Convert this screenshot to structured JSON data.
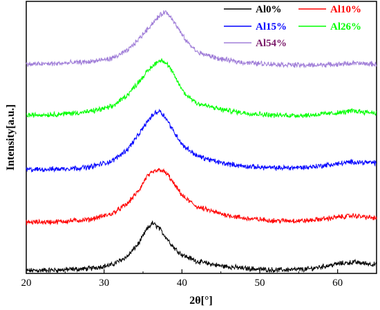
{
  "chart_data": {
    "type": "line",
    "title": "",
    "xlabel": "2θ[°]",
    "ylabel": "Intensity[a.u.]",
    "xlim": [
      20,
      65
    ],
    "x_ticks": [
      20,
      30,
      40,
      50,
      60
    ],
    "grid": false,
    "legend_position": "top-right",
    "series": [
      {
        "name": "Al0%",
        "color": "#000000",
        "x": [
          20,
          24,
          28,
          31,
          33,
          34.5,
          35.5,
          36.2,
          37,
          38,
          39,
          40,
          42,
          45,
          48,
          52,
          56,
          60,
          62,
          65
        ],
        "y": [
          0.08,
          0.1,
          0.14,
          0.25,
          0.5,
          0.9,
          1.3,
          1.48,
          1.35,
          1.05,
          0.75,
          0.55,
          0.35,
          0.22,
          0.15,
          0.1,
          0.12,
          0.28,
          0.33,
          0.26
        ]
      },
      {
        "name": "Al10%",
        "color": "#ff0000",
        "x": [
          20,
          24,
          28,
          31,
          33,
          34.5,
          35.5,
          36.5,
          37.3,
          38.2,
          39.2,
          40.2,
          42,
          45,
          48,
          52,
          56,
          60,
          62,
          65
        ],
        "y": [
          1.5,
          1.52,
          1.58,
          1.75,
          2.05,
          2.45,
          2.85,
          3.0,
          3.05,
          2.9,
          2.55,
          2.25,
          1.95,
          1.75,
          1.62,
          1.55,
          1.55,
          1.65,
          1.7,
          1.62
        ]
      },
      {
        "name": "Al15%",
        "color": "#0000ff",
        "x": [
          20,
          24,
          28,
          31,
          33,
          34.5,
          35.5,
          36.5,
          37.2,
          38,
          39,
          40.2,
          42,
          45,
          48,
          52,
          56,
          60,
          62,
          65
        ],
        "y": [
          3.05,
          3.07,
          3.12,
          3.3,
          3.65,
          4.1,
          4.45,
          4.72,
          4.78,
          4.55,
          4.15,
          3.75,
          3.45,
          3.25,
          3.15,
          3.1,
          3.12,
          3.22,
          3.28,
          3.25
        ]
      },
      {
        "name": "Al26%",
        "color": "#00ff00",
        "x": [
          20,
          24,
          28,
          31,
          33,
          34.5,
          35.8,
          36.8,
          37.5,
          38.3,
          39.3,
          40.3,
          42,
          45,
          48,
          52,
          56,
          60,
          62,
          65
        ],
        "y": [
          4.65,
          4.68,
          4.75,
          4.9,
          5.25,
          5.65,
          6.0,
          6.22,
          6.28,
          6.1,
          5.7,
          5.3,
          5.0,
          4.82,
          4.72,
          4.65,
          4.65,
          4.72,
          4.78,
          4.72
        ]
      },
      {
        "name": "Al54%",
        "color": "#a07ed8",
        "x": [
          20,
          24,
          28,
          31,
          33,
          34.5,
          35.8,
          37,
          37.8,
          38.6,
          39.5,
          40.5,
          42,
          45,
          48,
          52,
          56,
          60,
          62,
          65
        ],
        "y": [
          6.15,
          6.17,
          6.22,
          6.32,
          6.55,
          6.9,
          7.25,
          7.55,
          7.7,
          7.55,
          7.2,
          6.85,
          6.5,
          6.3,
          6.2,
          6.15,
          6.12,
          6.15,
          6.18,
          6.15
        ]
      }
    ]
  },
  "legend": {
    "items": [
      {
        "label": "Al0%",
        "color": "#000000"
      },
      {
        "label": "Al10%",
        "color": "#ff0000"
      },
      {
        "label": "Al15%",
        "color": "#0000ff"
      },
      {
        "label": "Al26%",
        "color": "#00ff00"
      },
      {
        "label": "Al54%",
        "color": "#a07ed8",
        "text_color": "#7a1a6a"
      }
    ]
  }
}
